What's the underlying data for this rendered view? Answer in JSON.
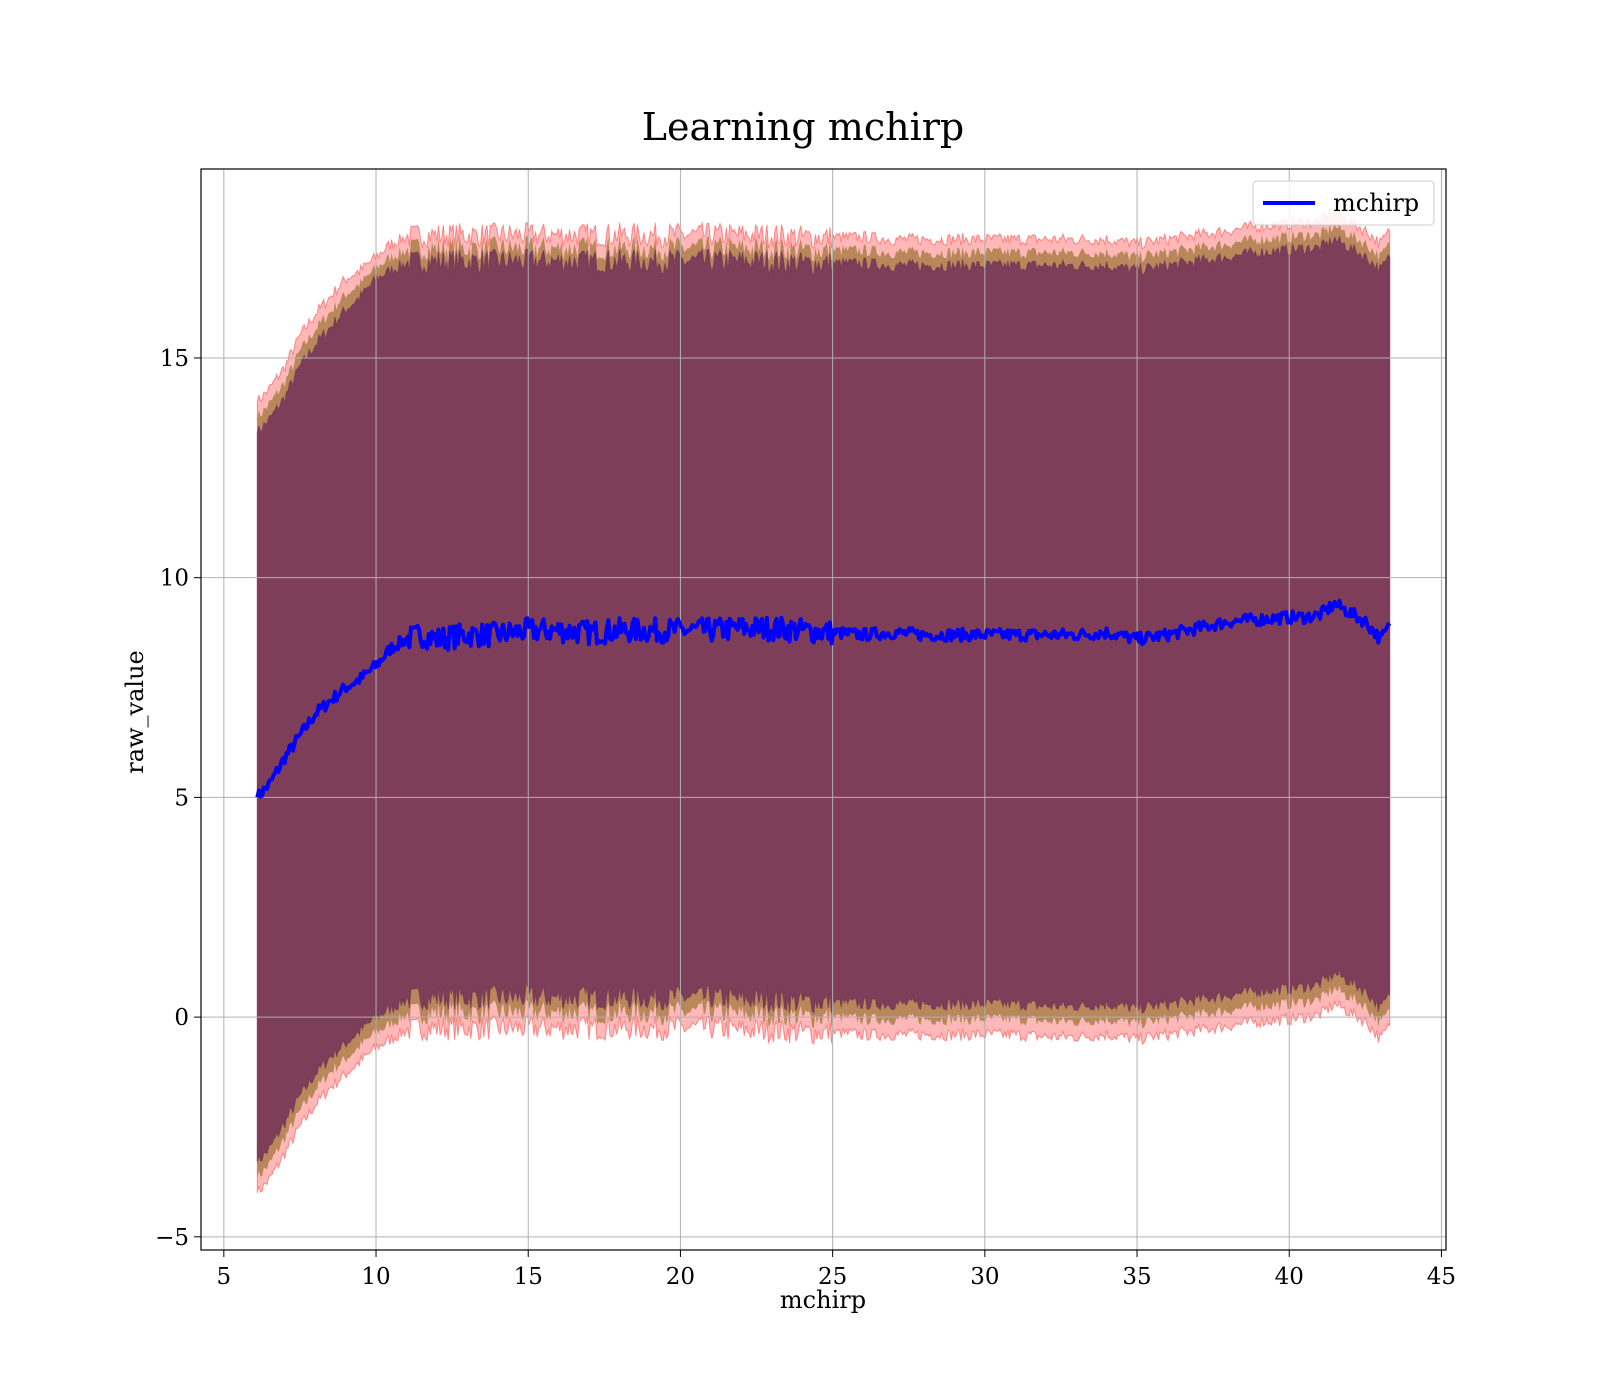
{
  "chart_data": {
    "type": "area",
    "title": "Learning mchirp",
    "xlabel": "mchirp",
    "ylabel": "raw_value",
    "xlim": [
      4.25,
      45.15
    ],
    "ylim": [
      -5.3,
      19.3
    ],
    "xticks": [
      5,
      10,
      15,
      20,
      25,
      30,
      35,
      40,
      45
    ],
    "yticks": [
      -5,
      0,
      5,
      10,
      15
    ],
    "grid": true,
    "legend": {
      "placement": "upper right",
      "entries": [
        "mchirp"
      ]
    },
    "colors": {
      "line": "#0000ff",
      "outer_band": "#ff6060",
      "middle_band": "#a0783c",
      "inner_band": "#7a3a5a"
    },
    "series": [
      {
        "name": "mchirp",
        "x": [
          6.1,
          6.5,
          7.0,
          7.5,
          8.0,
          8.5,
          9.0,
          9.5,
          10.0,
          10.5,
          11.0,
          11.5,
          12.0,
          13.0,
          14.0,
          15.0,
          16.0,
          17.0,
          18.0,
          19.0,
          20.0,
          21.0,
          22.0,
          23.0,
          24.0,
          25.0,
          26.0,
          27.0,
          28.0,
          29.0,
          30.0,
          31.0,
          32.0,
          33.0,
          34.0,
          35.0,
          36.0,
          37.0,
          38.0,
          39.0,
          40.0,
          40.5,
          41.0,
          41.5,
          42.0,
          42.5,
          43.0,
          43.3
        ],
        "y": [
          5.0,
          5.3,
          5.9,
          6.4,
          6.9,
          7.2,
          7.5,
          7.7,
          8.0,
          8.4,
          8.6,
          8.7,
          8.6,
          8.7,
          8.7,
          8.8,
          8.8,
          8.75,
          8.8,
          8.8,
          8.8,
          8.8,
          8.85,
          8.85,
          8.8,
          8.75,
          8.7,
          8.75,
          8.7,
          8.7,
          8.7,
          8.7,
          8.7,
          8.7,
          8.75,
          8.6,
          8.7,
          8.85,
          9.0,
          9.05,
          9.1,
          9.1,
          9.15,
          9.4,
          9.2,
          9.0,
          8.6,
          8.9
        ]
      }
    ],
    "bands": {
      "outer_upper": [
        14.0,
        14.3,
        14.8,
        15.5,
        16.0,
        16.4,
        16.8,
        17.0,
        17.3,
        17.6,
        17.75,
        17.8,
        17.8,
        17.8,
        17.8,
        17.8,
        17.8,
        17.8,
        17.8,
        17.8,
        17.8,
        17.8,
        17.8,
        17.8,
        17.75,
        17.75,
        17.75,
        17.7,
        17.7,
        17.7,
        17.7,
        17.7,
        17.7,
        17.7,
        17.7,
        17.6,
        17.7,
        17.8,
        17.9,
        18.0,
        18.05,
        18.1,
        18.1,
        18.3,
        18.1,
        17.9,
        17.6,
        17.9
      ],
      "inner_upper": [
        13.3,
        13.6,
        14.1,
        14.8,
        15.3,
        15.7,
        16.1,
        16.4,
        16.8,
        17.0,
        17.15,
        17.2,
        17.2,
        17.2,
        17.2,
        17.2,
        17.2,
        17.2,
        17.2,
        17.2,
        17.2,
        17.2,
        17.2,
        17.2,
        17.15,
        17.15,
        17.15,
        17.1,
        17.1,
        17.1,
        17.1,
        17.1,
        17.1,
        17.1,
        17.1,
        17.0,
        17.1,
        17.2,
        17.3,
        17.4,
        17.45,
        17.5,
        17.5,
        17.7,
        17.5,
        17.3,
        17.0,
        17.3
      ],
      "inner_lower": [
        -3.3,
        -3.0,
        -2.4,
        -1.8,
        -1.3,
        -0.9,
        -0.6,
        -0.3,
        0.0,
        0.2,
        0.4,
        0.45,
        0.45,
        0.45,
        0.45,
        0.45,
        0.45,
        0.45,
        0.45,
        0.45,
        0.45,
        0.45,
        0.4,
        0.4,
        0.35,
        0.35,
        0.3,
        0.3,
        0.3,
        0.3,
        0.3,
        0.3,
        0.25,
        0.25,
        0.3,
        0.2,
        0.3,
        0.4,
        0.5,
        0.6,
        0.65,
        0.7,
        0.75,
        1.0,
        0.8,
        0.6,
        0.2,
        0.5
      ],
      "outer_lower": [
        -4.0,
        -3.7,
        -3.1,
        -2.5,
        -2.0,
        -1.6,
        -1.3,
        -1.0,
        -0.7,
        -0.5,
        -0.3,
        -0.25,
        -0.25,
        -0.25,
        -0.25,
        -0.25,
        -0.25,
        -0.25,
        -0.25,
        -0.25,
        -0.25,
        -0.25,
        -0.3,
        -0.3,
        -0.35,
        -0.35,
        -0.4,
        -0.4,
        -0.4,
        -0.4,
        -0.4,
        -0.4,
        -0.45,
        -0.45,
        -0.4,
        -0.5,
        -0.4,
        -0.3,
        -0.2,
        -0.1,
        -0.05,
        0.0,
        0.05,
        0.3,
        0.1,
        -0.1,
        -0.5,
        -0.2
      ]
    }
  }
}
